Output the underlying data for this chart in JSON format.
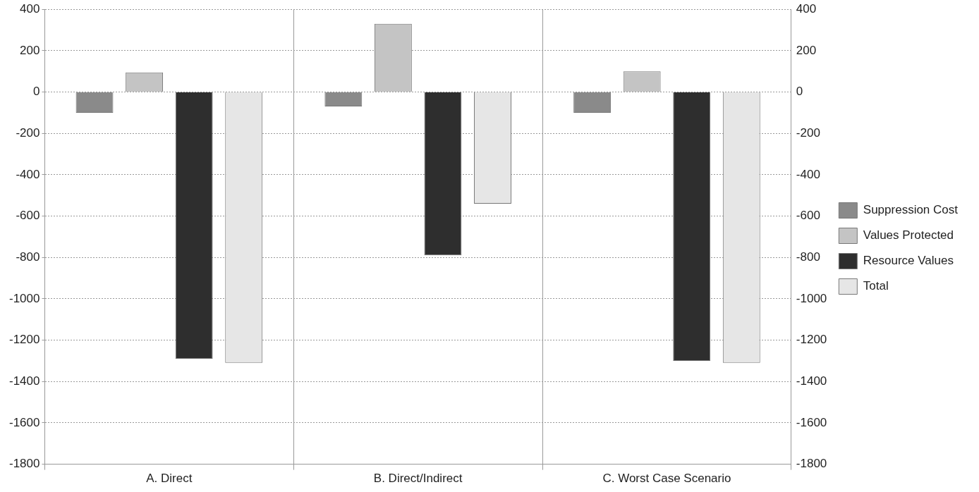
{
  "chart_data": {
    "type": "bar",
    "categories": [
      "A. Direct",
      "B. Direct/Indirect",
      "C. Worst Case Scenario"
    ],
    "series": [
      {
        "name": "Suppression Cost",
        "color": "#8a8a8a",
        "values": [
          -100,
          -70,
          -100
        ]
      },
      {
        "name": "Values Protected",
        "color": "#c4c4c4",
        "values": [
          95,
          330,
          100
        ]
      },
      {
        "name": "Resource Values",
        "color": "#2e2e2e",
        "values": [
          -1290,
          -790,
          -1300
        ]
      },
      {
        "name": "Total",
        "color": "#e6e6e6",
        "values": [
          -1310,
          -540,
          -1310
        ]
      }
    ],
    "ylim": [
      -1800,
      400
    ],
    "yticks": [
      -1800,
      -1600,
      -1400,
      -1200,
      -1000,
      -800,
      -600,
      -400,
      -200,
      0,
      200,
      400
    ],
    "y2lim": [
      -1800,
      400
    ],
    "y2ticks": [
      -1800,
      -1600,
      -1400,
      -1200,
      -1000,
      -800,
      -600,
      -400,
      -200,
      0,
      200,
      400
    ],
    "grid": true,
    "legend": "right"
  }
}
